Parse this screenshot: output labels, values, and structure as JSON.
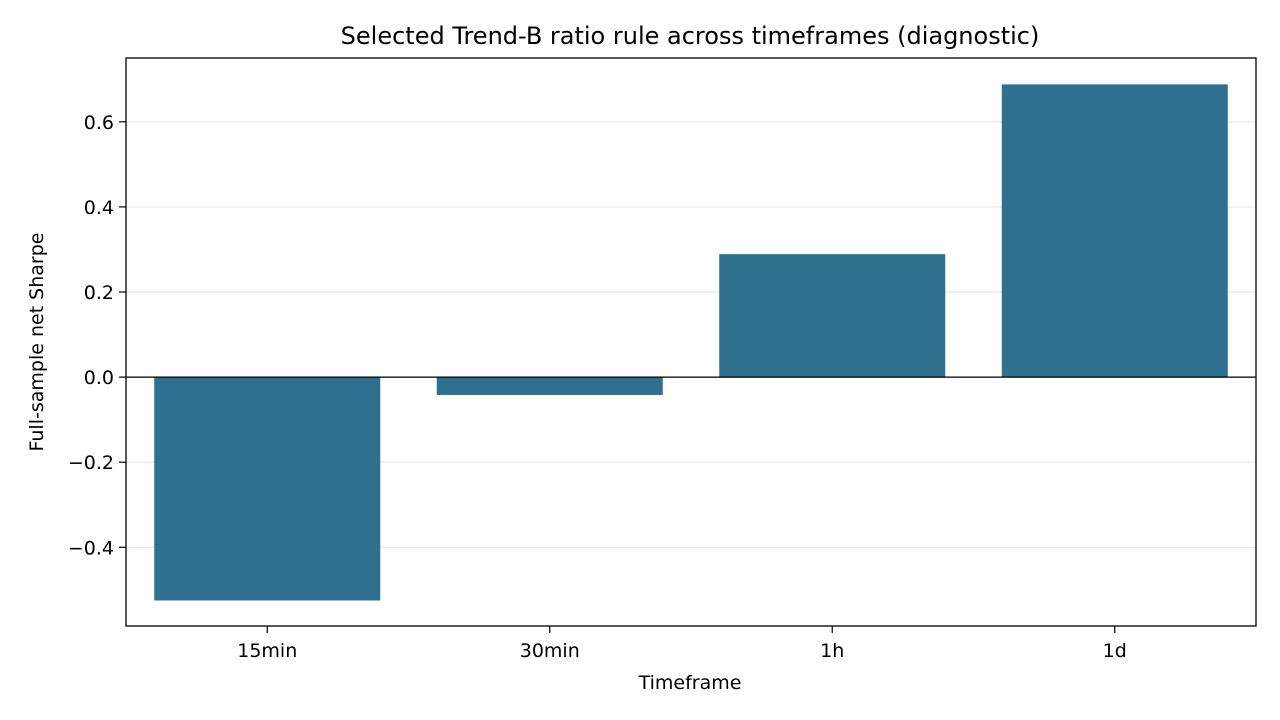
{
  "chart_data": {
    "type": "bar",
    "title": "Selected Trend-B ratio rule across timeframes (diagnostic)",
    "xlabel": "Timeframe",
    "ylabel": "Full-sample net Sharpe",
    "categories": [
      "15min",
      "30min",
      "1h",
      "1d"
    ],
    "values": [
      -0.525,
      -0.042,
      0.289,
      0.688
    ],
    "ylim": [
      -0.585,
      0.75
    ],
    "yticks": [
      -0.4,
      -0.2,
      0.0,
      0.2,
      0.4,
      0.6
    ],
    "ytick_labels": [
      "−0.4",
      "−0.2",
      "0.0",
      "0.2",
      "0.4",
      "0.6"
    ],
    "grid": "y",
    "zero_line": true,
    "legend": "none",
    "colors": {
      "bar": "#2f6f8f",
      "grid": "#e6e6e6",
      "axis": "#000000"
    }
  }
}
